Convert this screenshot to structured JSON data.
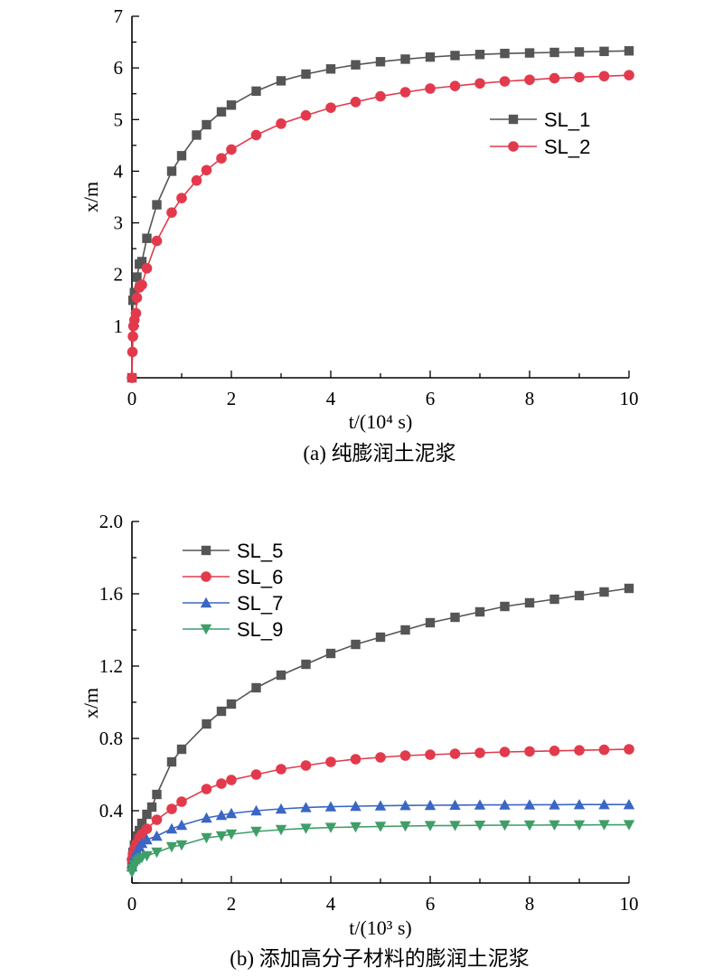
{
  "chart_data": [
    {
      "type": "line",
      "caption": "(a) 纯膨润土泥浆",
      "xlabel": "t/(10⁴ s)",
      "ylabel": "x/m",
      "xlim": [
        0,
        10
      ],
      "ylim": [
        0,
        7
      ],
      "xticks": [
        "0",
        "2",
        "4",
        "6",
        "8",
        "10"
      ],
      "yticks": [
        "1",
        "2",
        "3",
        "4",
        "5",
        "6",
        "7"
      ],
      "legend_position": "center-right",
      "series": [
        {
          "name": "SL_1",
          "color": "#555555",
          "marker": "square",
          "x": [
            0,
            0.02,
            0.05,
            0.1,
            0.15,
            0.2,
            0.3,
            0.5,
            0.8,
            1.0,
            1.3,
            1.5,
            1.8,
            2.0,
            2.5,
            3.0,
            3.5,
            4.0,
            4.5,
            5.0,
            5.5,
            6.0,
            6.5,
            7.0,
            7.5,
            8.0,
            8.5,
            9.0,
            9.5,
            10.0
          ],
          "y": [
            0,
            1.5,
            1.65,
            1.95,
            2.2,
            2.25,
            2.7,
            3.35,
            4.0,
            4.3,
            4.7,
            4.9,
            5.15,
            5.28,
            5.55,
            5.75,
            5.88,
            5.98,
            6.06,
            6.12,
            6.17,
            6.21,
            6.24,
            6.26,
            6.28,
            6.29,
            6.3,
            6.31,
            6.32,
            6.33
          ]
        },
        {
          "name": "SL_2",
          "color": "#e23a4c",
          "marker": "circle",
          "x": [
            0,
            0.01,
            0.02,
            0.03,
            0.05,
            0.08,
            0.1,
            0.15,
            0.2,
            0.3,
            0.5,
            0.8,
            1.0,
            1.3,
            1.5,
            1.8,
            2.0,
            2.5,
            3.0,
            3.5,
            4.0,
            4.5,
            5.0,
            5.5,
            6.0,
            6.5,
            7.0,
            7.5,
            8.0,
            8.5,
            9.0,
            9.5,
            10.0
          ],
          "y": [
            0,
            0.5,
            0.8,
            1.0,
            1.12,
            1.25,
            1.55,
            1.75,
            1.8,
            2.12,
            2.65,
            3.2,
            3.48,
            3.82,
            4.02,
            4.25,
            4.42,
            4.7,
            4.92,
            5.08,
            5.23,
            5.34,
            5.45,
            5.53,
            5.6,
            5.65,
            5.7,
            5.74,
            5.77,
            5.8,
            5.82,
            5.84,
            5.86
          ]
        }
      ]
    },
    {
      "type": "line",
      "caption": "(b) 添加高分子材料的膨润土泥浆",
      "xlabel": "t/(10³ s)",
      "ylabel": "x/m",
      "xlim": [
        0,
        10
      ],
      "ylim": [
        0,
        2.0
      ],
      "xticks": [
        "0",
        "2",
        "4",
        "6",
        "8",
        "10"
      ],
      "yticks": [
        "0.4",
        "0.8",
        "1.2",
        "1.6",
        "2.0"
      ],
      "legend_position": "top-left",
      "series": [
        {
          "name": "SL_5",
          "color": "#555555",
          "marker": "square",
          "x": [
            0,
            0.02,
            0.05,
            0.1,
            0.15,
            0.2,
            0.3,
            0.4,
            0.5,
            0.8,
            1.0,
            1.5,
            1.8,
            2.0,
            2.5,
            3.0,
            3.5,
            4.0,
            4.5,
            5.0,
            5.5,
            6.0,
            6.5,
            7.0,
            7.5,
            8.0,
            8.5,
            9.0,
            9.5,
            10.0
          ],
          "y": [
            0.1,
            0.17,
            0.21,
            0.26,
            0.29,
            0.33,
            0.38,
            0.42,
            0.49,
            0.67,
            0.74,
            0.88,
            0.95,
            0.99,
            1.08,
            1.15,
            1.21,
            1.27,
            1.32,
            1.36,
            1.4,
            1.44,
            1.47,
            1.5,
            1.53,
            1.55,
            1.57,
            1.59,
            1.61,
            1.63
          ]
        },
        {
          "name": "SL_6",
          "color": "#e23a4c",
          "marker": "circle",
          "x": [
            0,
            0.02,
            0.05,
            0.1,
            0.15,
            0.2,
            0.3,
            0.5,
            0.8,
            1.0,
            1.5,
            1.8,
            2.0,
            2.5,
            3.0,
            3.5,
            4.0,
            4.5,
            5.0,
            5.5,
            6.0,
            6.5,
            7.0,
            7.5,
            8.0,
            8.5,
            9.0,
            9.5,
            10.0
          ],
          "y": [
            0.13,
            0.16,
            0.19,
            0.22,
            0.25,
            0.27,
            0.3,
            0.35,
            0.41,
            0.45,
            0.52,
            0.55,
            0.57,
            0.6,
            0.63,
            0.65,
            0.67,
            0.685,
            0.695,
            0.705,
            0.71,
            0.715,
            0.72,
            0.725,
            0.728,
            0.731,
            0.734,
            0.737,
            0.74
          ]
        },
        {
          "name": "SL_7",
          "color": "#3a66c4",
          "marker": "triangle-up",
          "x": [
            0,
            0.02,
            0.05,
            0.1,
            0.15,
            0.2,
            0.3,
            0.5,
            0.8,
            1.0,
            1.5,
            1.8,
            2.0,
            2.5,
            3.0,
            3.5,
            4.0,
            4.5,
            5.0,
            5.5,
            6.0,
            6.5,
            7.0,
            7.5,
            8.0,
            8.5,
            9.0,
            9.5,
            10.0
          ],
          "y": [
            0.09,
            0.12,
            0.15,
            0.18,
            0.2,
            0.22,
            0.24,
            0.26,
            0.3,
            0.32,
            0.36,
            0.375,
            0.385,
            0.4,
            0.41,
            0.418,
            0.422,
            0.425,
            0.427,
            0.429,
            0.43,
            0.431,
            0.432,
            0.432,
            0.433,
            0.433,
            0.434,
            0.434,
            0.434
          ]
        },
        {
          "name": "SL_9",
          "color": "#3f9e68",
          "marker": "triangle-down",
          "x": [
            0,
            0.02,
            0.05,
            0.1,
            0.15,
            0.2,
            0.3,
            0.5,
            0.8,
            1.0,
            1.5,
            1.8,
            2.0,
            2.5,
            3.0,
            3.5,
            4.0,
            4.5,
            5.0,
            5.5,
            6.0,
            6.5,
            7.0,
            7.5,
            8.0,
            8.5,
            9.0,
            9.5,
            10.0
          ],
          "y": [
            0.06,
            0.08,
            0.1,
            0.12,
            0.13,
            0.14,
            0.15,
            0.17,
            0.2,
            0.21,
            0.25,
            0.26,
            0.27,
            0.285,
            0.295,
            0.302,
            0.307,
            0.31,
            0.313,
            0.315,
            0.317,
            0.318,
            0.319,
            0.32,
            0.32,
            0.321,
            0.321,
            0.322,
            0.322
          ]
        }
      ]
    }
  ]
}
